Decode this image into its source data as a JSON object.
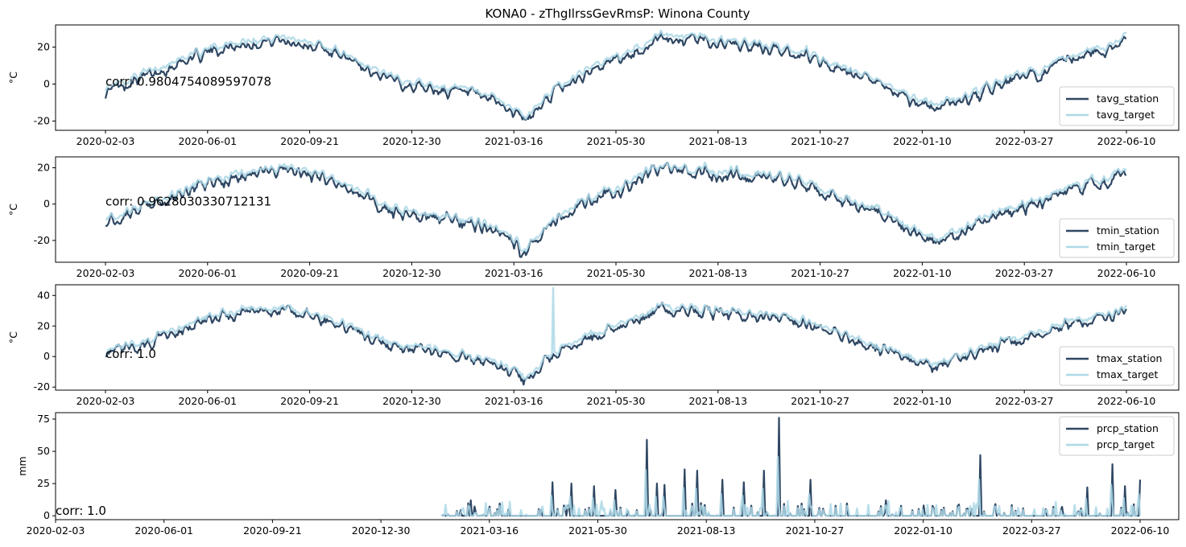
{
  "figure": {
    "title": "KONA0 - zThgIlrssGevRmsP: Winona County"
  },
  "chart_data": [
    {
      "type": "line",
      "ylabel": "°C",
      "x_ticks": [
        "2020-02-03",
        "2020-06-01",
        "2020-09-21",
        "2020-12-30",
        "2021-03-16",
        "2021-05-30",
        "2021-08-13",
        "2021-10-27",
        "2022-01-10",
        "2022-03-27",
        "2022-06-10"
      ],
      "ylim": [
        -25,
        32
      ],
      "y_ticks": [
        -20,
        0,
        20
      ],
      "annotation": "corr: 0.9804754089597078",
      "legend_position": "lower-right",
      "series": [
        {
          "name": "tavg_station",
          "color": "#2f4763"
        },
        {
          "name": "tavg_target",
          "color": "#add8e6"
        }
      ],
      "anchors": [
        [
          0,
          -3
        ],
        [
          30,
          4
        ],
        [
          60,
          12
        ],
        [
          90,
          19
        ],
        [
          120,
          23
        ],
        [
          150,
          25
        ],
        [
          180,
          21
        ],
        [
          210,
          13
        ],
        [
          240,
          3
        ],
        [
          270,
          -1
        ],
        [
          300,
          -4
        ],
        [
          330,
          -8
        ],
        [
          355,
          -19
        ],
        [
          380,
          -3
        ],
        [
          410,
          8
        ],
        [
          440,
          16
        ],
        [
          470,
          26
        ],
        [
          500,
          25
        ],
        [
          530,
          22
        ],
        [
          560,
          20
        ],
        [
          590,
          17
        ],
        [
          620,
          8
        ],
        [
          650,
          1
        ],
        [
          680,
          -8
        ],
        [
          700,
          -12
        ],
        [
          730,
          -6
        ],
        [
          760,
          2
        ],
        [
          790,
          7
        ],
        [
          820,
          15
        ],
        [
          850,
          21
        ],
        [
          862,
          26
        ]
      ],
      "station_noise": 5,
      "target_noise": 3,
      "target_offset": 1,
      "n_points": 863
    },
    {
      "type": "line",
      "ylabel": "°C",
      "x_ticks": [
        "2020-02-03",
        "2020-06-01",
        "2020-09-21",
        "2020-12-30",
        "2021-03-16",
        "2021-05-30",
        "2021-08-13",
        "2021-10-27",
        "2022-01-10",
        "2022-03-27",
        "2022-06-10"
      ],
      "ylim": [
        -32,
        26
      ],
      "y_ticks": [
        -20,
        0,
        20
      ],
      "annotation": "corr: 0.9628030330712131",
      "legend_position": "lower-right",
      "series": [
        {
          "name": "tmin_station",
          "color": "#2f4763"
        },
        {
          "name": "tmin_target",
          "color": "#add8e6"
        }
      ],
      "anchors": [
        [
          0,
          -8
        ],
        [
          30,
          -2
        ],
        [
          60,
          5
        ],
        [
          90,
          12
        ],
        [
          120,
          17
        ],
        [
          150,
          19
        ],
        [
          180,
          16
        ],
        [
          210,
          8
        ],
        [
          240,
          -2
        ],
        [
          270,
          -6
        ],
        [
          300,
          -10
        ],
        [
          330,
          -14
        ],
        [
          355,
          -26
        ],
        [
          380,
          -8
        ],
        [
          410,
          3
        ],
        [
          440,
          11
        ],
        [
          470,
          20
        ],
        [
          500,
          19
        ],
        [
          530,
          17
        ],
        [
          560,
          15
        ],
        [
          590,
          12
        ],
        [
          620,
          3
        ],
        [
          650,
          -4
        ],
        [
          680,
          -14
        ],
        [
          700,
          -20
        ],
        [
          730,
          -12
        ],
        [
          760,
          -4
        ],
        [
          790,
          2
        ],
        [
          820,
          9
        ],
        [
          850,
          15
        ],
        [
          862,
          20
        ]
      ],
      "station_noise": 6,
      "target_noise": 4,
      "target_offset": 1,
      "n_points": 863
    },
    {
      "type": "line",
      "ylabel": "°C",
      "x_ticks": [
        "2020-02-03",
        "2020-06-01",
        "2020-09-21",
        "2020-12-30",
        "2021-03-16",
        "2021-05-30",
        "2021-08-13",
        "2021-10-27",
        "2022-01-10",
        "2022-03-27",
        "2022-06-10"
      ],
      "ylim": [
        -22,
        47
      ],
      "y_ticks": [
        -20,
        0,
        20,
        40
      ],
      "annotation": "corr: 1.0",
      "legend_position": "lower-right",
      "series": [
        {
          "name": "tmax_station",
          "color": "#2f4763"
        },
        {
          "name": "tmax_target",
          "color": "#add8e6"
        }
      ],
      "anchors": [
        [
          0,
          2
        ],
        [
          30,
          8
        ],
        [
          60,
          18
        ],
        [
          90,
          26
        ],
        [
          120,
          30
        ],
        [
          150,
          31
        ],
        [
          180,
          27
        ],
        [
          210,
          18
        ],
        [
          240,
          8
        ],
        [
          270,
          5
        ],
        [
          300,
          2
        ],
        [
          330,
          -4
        ],
        [
          355,
          -15
        ],
        [
          380,
          3
        ],
        [
          410,
          14
        ],
        [
          440,
          22
        ],
        [
          470,
          32
        ],
        [
          500,
          31
        ],
        [
          530,
          29
        ],
        [
          560,
          27
        ],
        [
          590,
          23
        ],
        [
          620,
          14
        ],
        [
          650,
          7
        ],
        [
          680,
          -2
        ],
        [
          700,
          -6
        ],
        [
          730,
          2
        ],
        [
          760,
          10
        ],
        [
          790,
          15
        ],
        [
          820,
          23
        ],
        [
          850,
          28
        ],
        [
          862,
          32
        ]
      ],
      "station_noise": 6,
      "target_noise": 4,
      "target_offset": 1,
      "spike_index": 378,
      "spike_value": 45,
      "n_points": 863
    },
    {
      "type": "line",
      "ylabel": "mm",
      "x_ticks": [
        "2020-02-03",
        "2020-06-01",
        "2020-09-21",
        "2020-12-30",
        "2021-03-16",
        "2021-05-30",
        "2021-08-13",
        "2021-10-27",
        "2022-01-10",
        "2022-03-27",
        "2022-06-10"
      ],
      "ylim": [
        -3,
        80
      ],
      "y_ticks": [
        0,
        25,
        50,
        75
      ],
      "annotation": "corr: 1.0",
      "legend_position": "upper-right",
      "series": [
        {
          "name": "prcp_station",
          "color": "#2f4763"
        },
        {
          "name": "prcp_target",
          "color": "#add8e6"
        }
      ],
      "start_index": 307,
      "peaks": [
        [
          330,
          12
        ],
        [
          360,
          5
        ],
        [
          395,
          26
        ],
        [
          410,
          25
        ],
        [
          428,
          23
        ],
        [
          445,
          20
        ],
        [
          470,
          59
        ],
        [
          478,
          25
        ],
        [
          484,
          24
        ],
        [
          500,
          36
        ],
        [
          510,
          35
        ],
        [
          530,
          28
        ],
        [
          547,
          26
        ],
        [
          563,
          35
        ],
        [
          575,
          76
        ],
        [
          600,
          28
        ],
        [
          660,
          12
        ],
        [
          690,
          8
        ],
        [
          735,
          47
        ],
        [
          800,
          7
        ],
        [
          820,
          22
        ],
        [
          840,
          40
        ],
        [
          850,
          23
        ],
        [
          862,
          28
        ]
      ],
      "n_points": 863
    }
  ]
}
